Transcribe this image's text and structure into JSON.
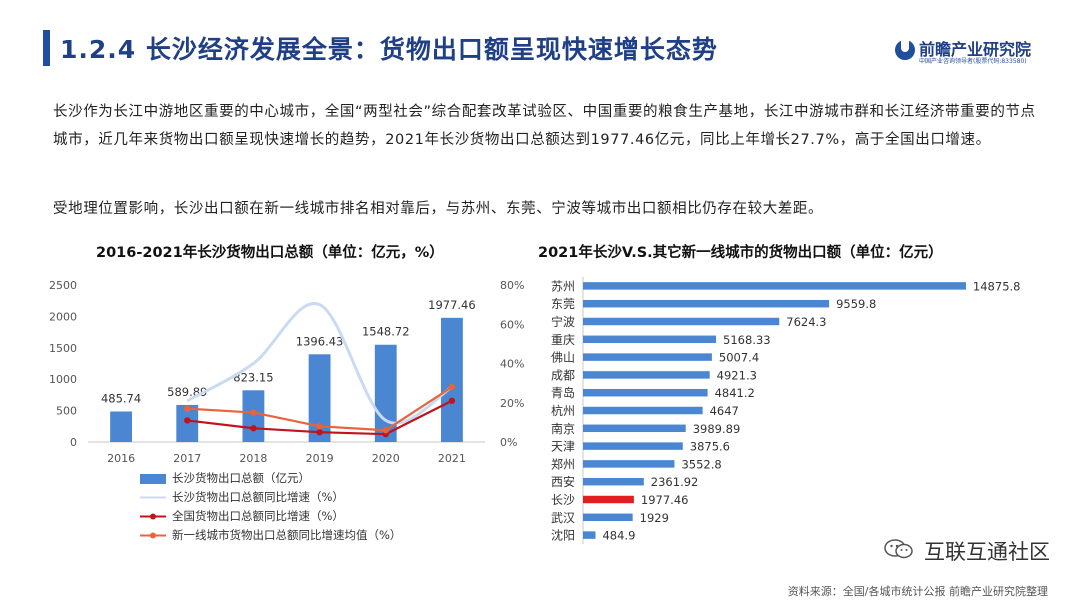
{
  "header": {
    "title": "1.2.4 长沙经济发展全景：货物出口额呈现快速增长态势",
    "logo_name": "前瞻产业研究院",
    "logo_sub": "中国产业咨询领导者(股票代码:833580)"
  },
  "paragraphs": [
    "长沙作为长江中游地区重要的中心城市，全国“两型社会”综合配套改革试验区、中国重要的粮食生产基地，长江中游城市群和长江经济带重要的节点城市，近几年来货物出口额呈现快速增长的趋势，2021年长沙货物出口总额达到1977.46亿元，同比上年增长27.7%，高于全国出口增速。",
    "受地理位置影响，长沙出口额在新一线城市排名相对靠后，与苏州、东莞、宁波等城市出口额相比仍存在较大差距。"
  ],
  "watermark": "互联互通社区",
  "source": "资料来源：全国/各城市统计公报 前瞻产业研究院整理",
  "colors": {
    "brand": "#1f3f86",
    "bar": "#4a86d2",
    "highlight": "#e02020"
  },
  "chart_data": [
    {
      "type": "bar",
      "title": "2016-2021年长沙货物出口总额（单位：亿元，%）",
      "categories": [
        "2016",
        "2017",
        "2018",
        "2019",
        "2020",
        "2021"
      ],
      "ylim": [
        0,
        2500
      ],
      "yticks": [
        "0",
        "500",
        "1000",
        "1500",
        "2000",
        "2500"
      ],
      "y2lim": [
        0,
        0.8
      ],
      "y2ticks": [
        "0%",
        "20%",
        "40%",
        "60%",
        "80%"
      ],
      "series": [
        {
          "name": "长沙货物出口总额（亿元）",
          "type": "bar",
          "axis": "left",
          "color": "#4a86d2",
          "values": [
            485.74,
            589.89,
            823.15,
            1396.43,
            1548.72,
            1977.46
          ],
          "labels": [
            "485.74",
            "589.89",
            "823.15",
            "1396.43",
            "1548.72",
            "1977.46"
          ]
        },
        {
          "name": "长沙货物出口总额同比增速（%）",
          "type": "line",
          "axis": "right",
          "color": "#c9daf2",
          "smooth": true,
          "values": [
            null,
            0.21,
            0.4,
            0.7,
            0.11,
            0.28
          ]
        },
        {
          "name": "全国货物出口总额同比增速（%）",
          "type": "line",
          "axis": "right",
          "color": "#c0141c",
          "marker": true,
          "values": [
            null,
            0.11,
            0.07,
            0.05,
            0.04,
            0.21
          ]
        },
        {
          "name": "新一线城市货物出口总额同比增速均值（%）",
          "type": "line",
          "axis": "right",
          "color": "#e8643c",
          "marker": true,
          "values": [
            null,
            0.17,
            0.15,
            0.08,
            0.06,
            0.28
          ]
        }
      ],
      "legend": "bottom"
    },
    {
      "type": "bar",
      "orientation": "horizontal",
      "title": "2021年长沙V.S.其它新一线城市的货物出口额（单位：亿元）",
      "categories": [
        "苏州",
        "东莞",
        "宁波",
        "重庆",
        "佛山",
        "成都",
        "青岛",
        "杭州",
        "南京",
        "天津",
        "郑州",
        "西安",
        "长沙",
        "武汉",
        "沈阳"
      ],
      "values": [
        14875.8,
        9559.8,
        7624.3,
        5168.33,
        5007.4,
        4921.3,
        4841.2,
        4647,
        3989.89,
        3875.6,
        3552.8,
        2361.92,
        1977.46,
        1929,
        484.9
      ],
      "labels": [
        "14875.8",
        "9559.8",
        "7624.3",
        "5168.33",
        "5007.4",
        "4921.3",
        "4841.2",
        "4647",
        "3989.89",
        "3875.6",
        "3552.8",
        "2361.92",
        "1977.46",
        "1929",
        "484.9"
      ],
      "xlim": [
        0,
        15500
      ],
      "highlight": "长沙"
    }
  ]
}
